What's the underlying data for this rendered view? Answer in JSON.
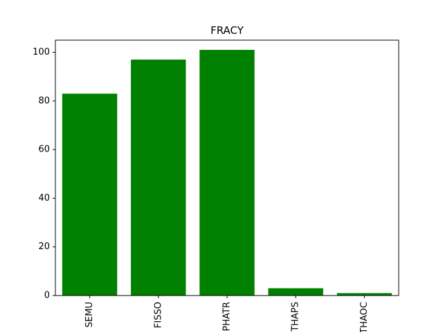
{
  "chart_data": {
    "type": "bar",
    "title": "FRACY",
    "xlabel": "",
    "ylabel": "",
    "categories": [
      "SEMU",
      "FISSO",
      "PHATR",
      "THAPS",
      "THAOC"
    ],
    "values": [
      83,
      97,
      101,
      3,
      1
    ],
    "ylim": [
      0,
      105
    ],
    "yticks": [
      0,
      20,
      40,
      60,
      80,
      100
    ],
    "bar_color": "#008000",
    "grid": false,
    "legend": "none"
  }
}
